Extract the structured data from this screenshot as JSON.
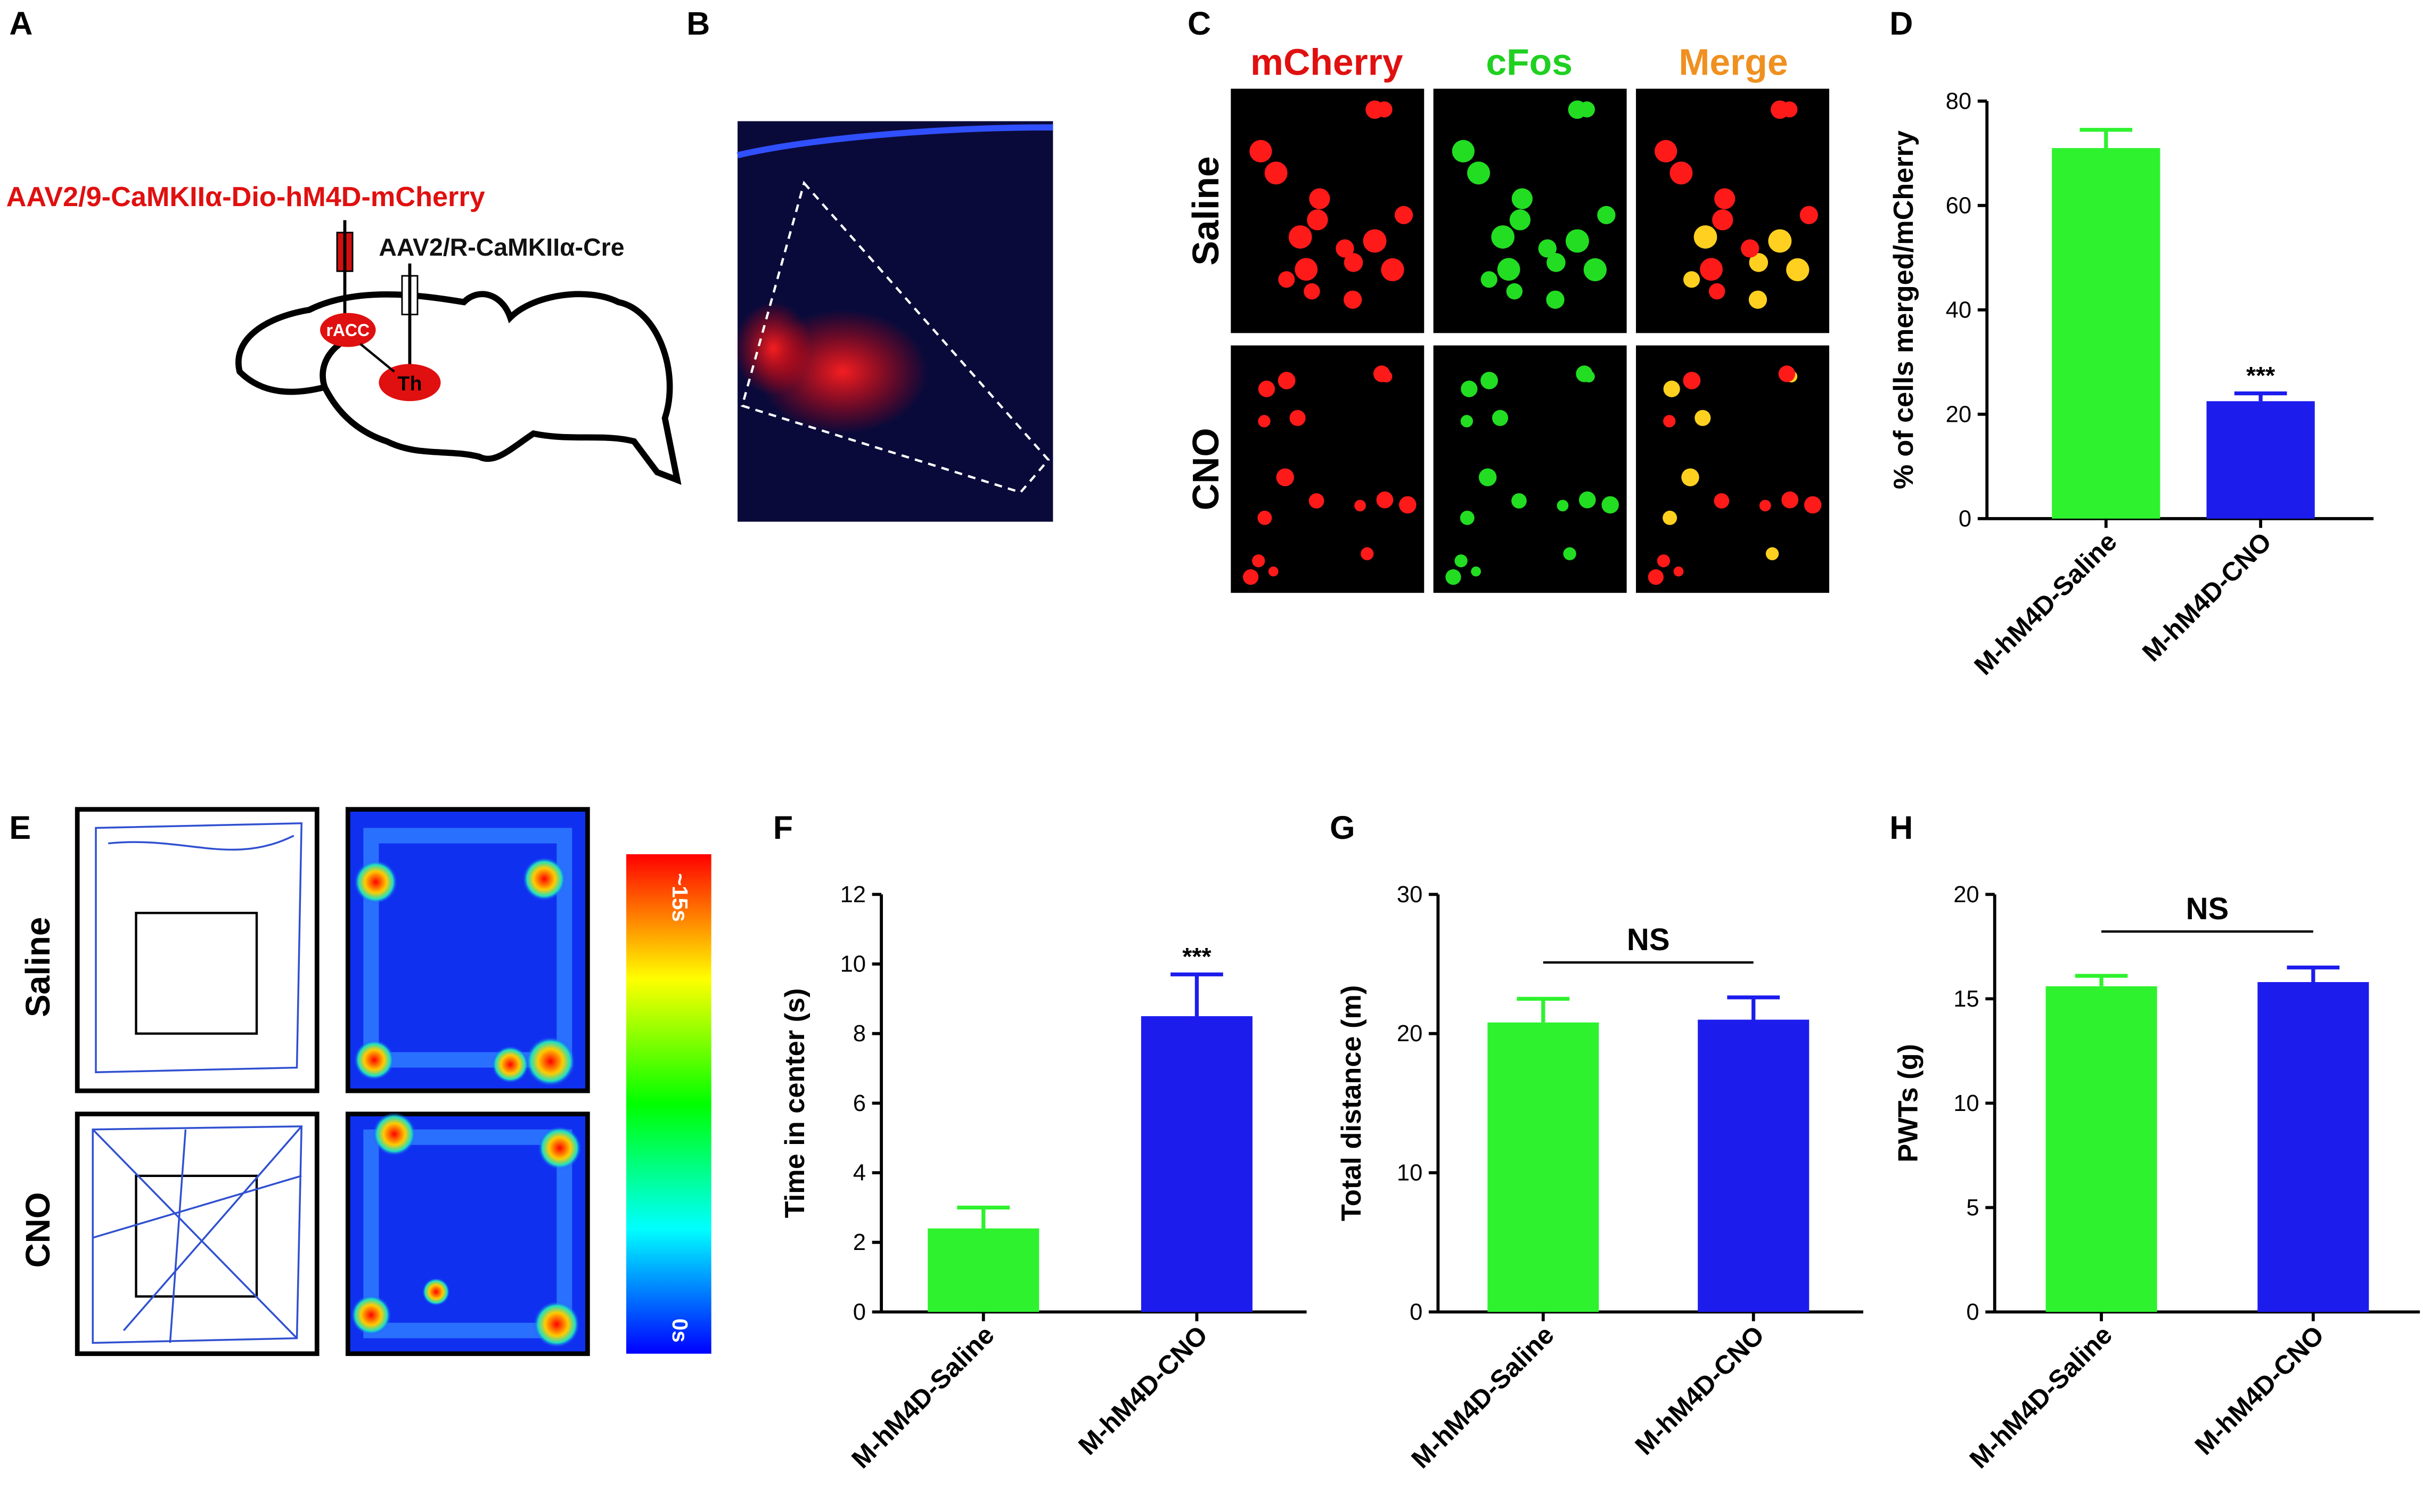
{
  "figure": {
    "panels": [
      "A",
      "B",
      "C",
      "D",
      "E",
      "F",
      "G",
      "H"
    ],
    "a": {
      "virus1": "AAV2/9-CaMKIIα-Dio-hM4D-mCherry",
      "virus2": "AAV2/R-CaMKIIα-Cre",
      "region1": "rACC",
      "region2": "Th"
    },
    "c": {
      "columns": [
        "mCherry",
        "cFos",
        "Merge"
      ],
      "rows": [
        "Saline",
        "CNO"
      ]
    },
    "e": {
      "rows": [
        "Saline",
        "CNO"
      ],
      "colorbar_max": "~15s",
      "colorbar_min": "0s"
    }
  },
  "chart_data": [
    {
      "type": "bar",
      "ylabel": "% of cells merged/mCherry",
      "categories": [
        "M-hM4D-Saline",
        "M-hM4D-CNO"
      ],
      "values": [
        71,
        22.5
      ],
      "errors": [
        3.5,
        1.5
      ],
      "colors": [
        "#2ef22e",
        "#1c1ced"
      ],
      "ylim": [
        0,
        80
      ],
      "yticks": [
        0,
        20,
        40,
        60,
        80
      ],
      "annotation": "***"
    },
    {
      "type": "bar",
      "ylabel": "Time in center (s)",
      "categories": [
        "M-hM4D-Saline",
        "M-hM4D-CNO"
      ],
      "values": [
        2.4,
        8.5
      ],
      "errors": [
        0.6,
        1.2
      ],
      "colors": [
        "#2ef22e",
        "#1c1ced"
      ],
      "ylim": [
        0,
        12
      ],
      "yticks": [
        0,
        2,
        4,
        6,
        8,
        10,
        12
      ],
      "annotation": "***"
    },
    {
      "type": "bar",
      "ylabel": "Total distance (m)",
      "categories": [
        "M-hM4D-Saline",
        "M-hM4D-CNO"
      ],
      "values": [
        20.8,
        21.0
      ],
      "errors": [
        1.7,
        1.6
      ],
      "colors": [
        "#2ef22e",
        "#1c1ced"
      ],
      "ylim": [
        0,
        30
      ],
      "yticks": [
        0,
        10,
        20,
        30
      ],
      "annotation": "NS"
    },
    {
      "type": "bar",
      "ylabel": "PWTs (g)",
      "categories": [
        "M-hM4D-Saline",
        "M-hM4D-CNO"
      ],
      "values": [
        15.6,
        15.8
      ],
      "errors": [
        0.5,
        0.7
      ],
      "colors": [
        "#2ef22e",
        "#1c1ced"
      ],
      "ylim": [
        0,
        20
      ],
      "yticks": [
        0,
        5,
        10,
        15,
        20
      ],
      "annotation": "NS"
    }
  ]
}
